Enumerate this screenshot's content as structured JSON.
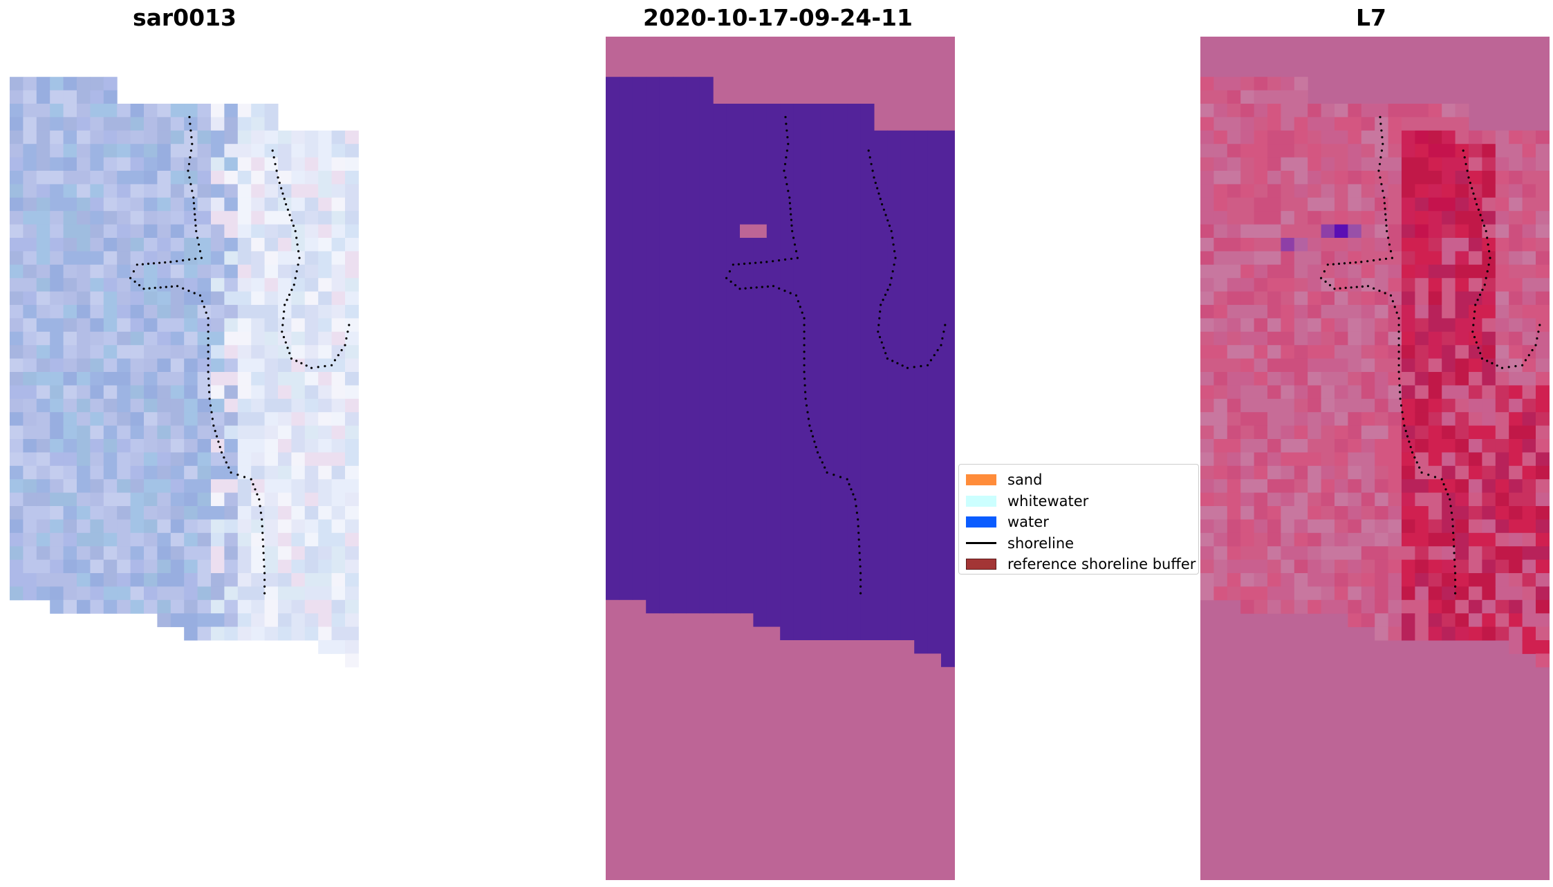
{
  "panels": [
    {
      "id": "rgb",
      "title": "sar0013"
    },
    {
      "id": "classification",
      "title": "2020-10-17-09-24-11"
    },
    {
      "id": "index",
      "title": "L7"
    }
  ],
  "legend": {
    "items": [
      {
        "label": "sand",
        "color": "#ff8c3a",
        "kind": "patch"
      },
      {
        "label": "whitewater",
        "color": "#ccffff",
        "kind": "patch"
      },
      {
        "label": "water",
        "color": "#0a5cff",
        "kind": "patch"
      },
      {
        "label": "shoreline",
        "color": "#000000",
        "kind": "line"
      },
      {
        "label": "reference shoreline buffer",
        "color": "#a33535",
        "kind": "patch"
      }
    ]
  },
  "colors": {
    "nodata": "#bd6596",
    "class_water": "#53239a",
    "index_high": "#c5134d",
    "index_low": "#5a0fb4",
    "rgb_base": "#a7b5e0"
  }
}
